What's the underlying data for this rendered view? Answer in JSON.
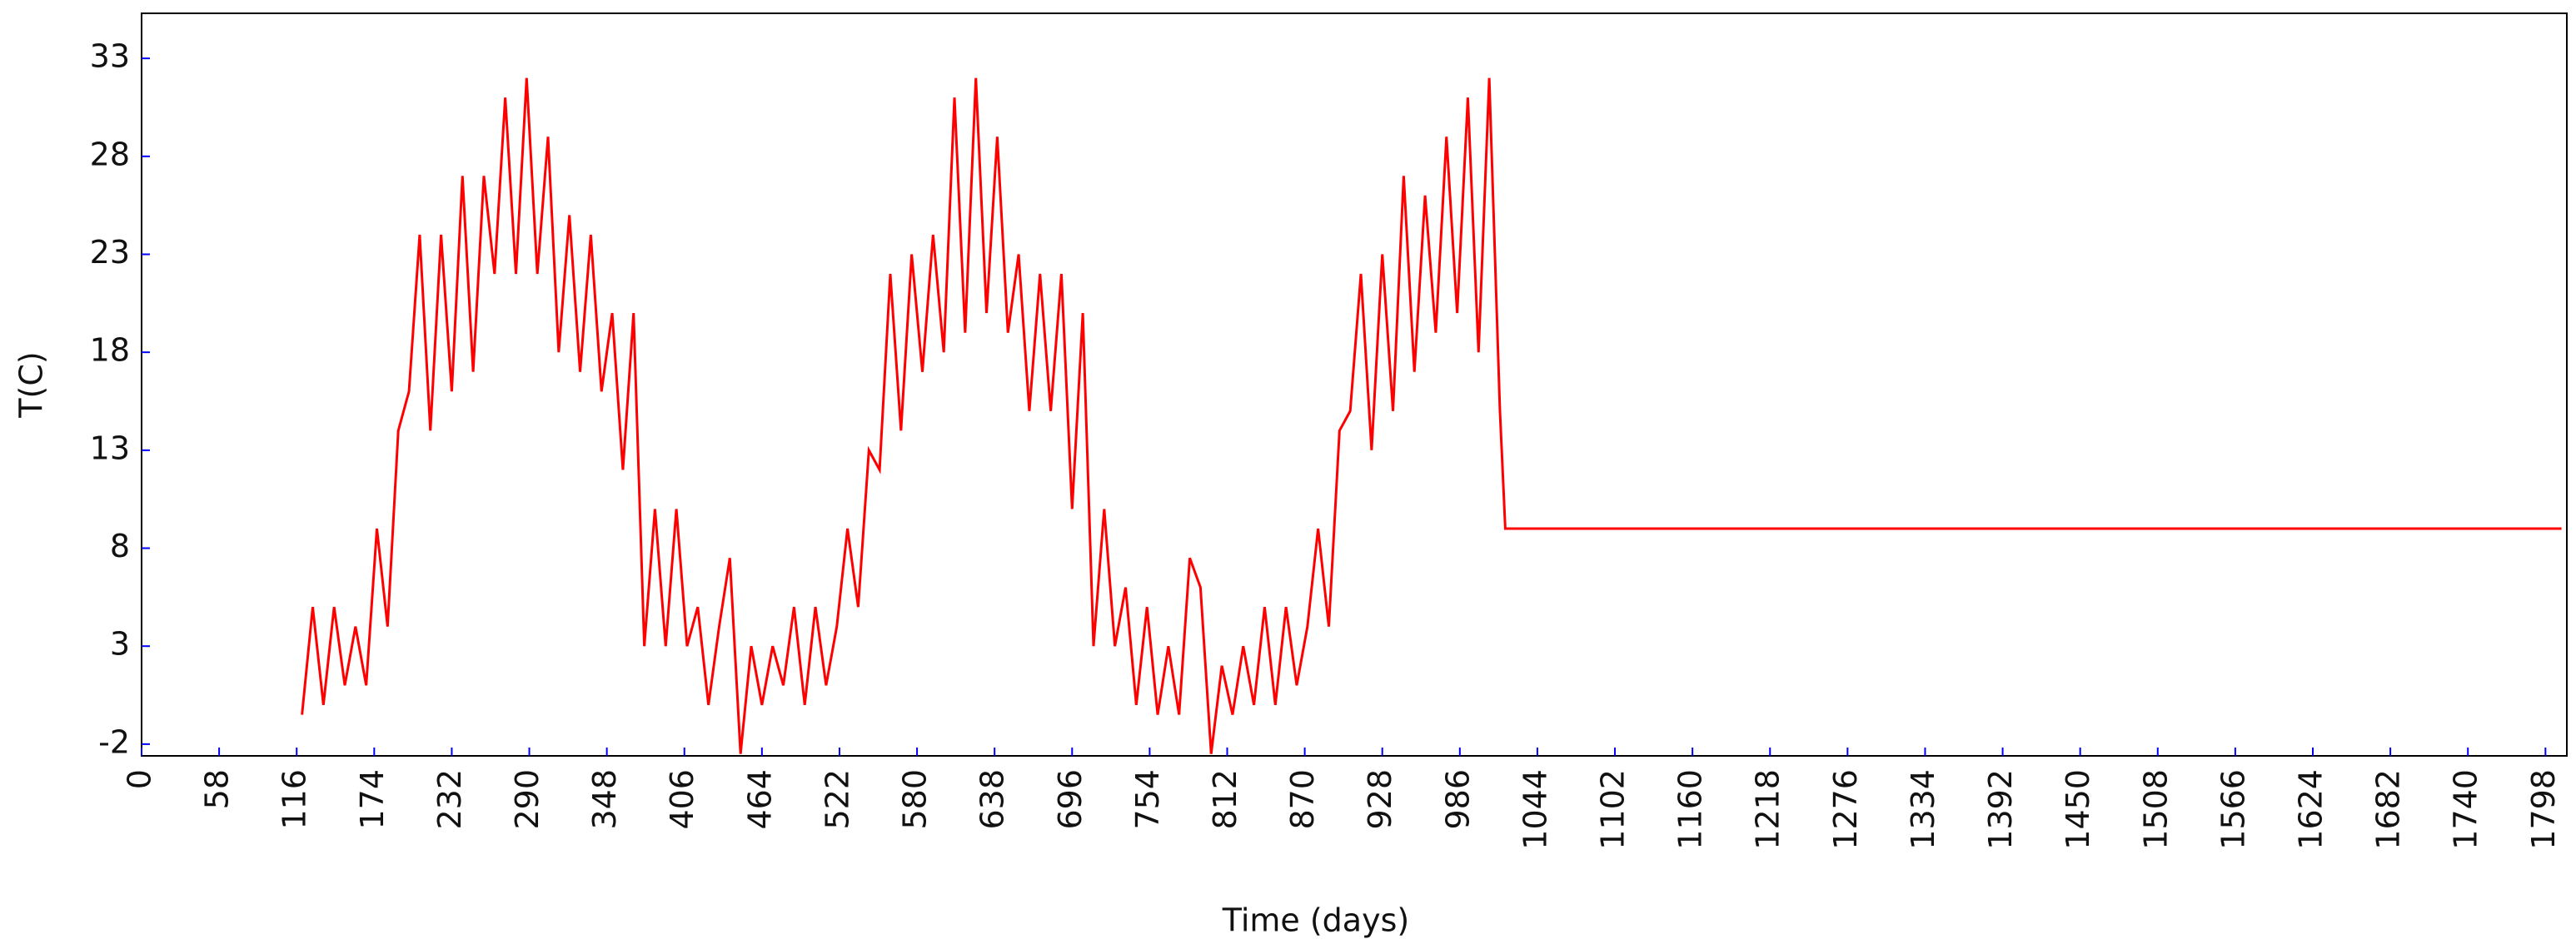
{
  "chart_data": {
    "type": "line",
    "x_label": "Time (days)",
    "y_label": "T(C)",
    "x": [
      120,
      128,
      136,
      144,
      152,
      160,
      168,
      176,
      184,
      192,
      200,
      208,
      216,
      224,
      232,
      240,
      248,
      256,
      264,
      272,
      280,
      288,
      296,
      304,
      312,
      320,
      328,
      336,
      344,
      352,
      360,
      368,
      376,
      384,
      392,
      400,
      408,
      416,
      424,
      432,
      440,
      448,
      456,
      464,
      472,
      480,
      488,
      496,
      504,
      512,
      520,
      528,
      536,
      544,
      552,
      560,
      568,
      576,
      584,
      592,
      600,
      608,
      616,
      624,
      632,
      640,
      648,
      656,
      664,
      672,
      680,
      688,
      696,
      704,
      712,
      720,
      728,
      736,
      744,
      752,
      760,
      768,
      776,
      784,
      792,
      800,
      808,
      816,
      824,
      832,
      840,
      848,
      856,
      864,
      872,
      880,
      888,
      896,
      904,
      912,
      920,
      928,
      936,
      944,
      952,
      960,
      968,
      976,
      984,
      992,
      1000,
      1008,
      1016,
      1020,
      1810
    ],
    "series": [
      {
        "color": "#ff0000",
        "values": [
          -0.5,
          5,
          0,
          5,
          1,
          4,
          1,
          9,
          4,
          14,
          16,
          24,
          14,
          24,
          16,
          27,
          17,
          27,
          22,
          31,
          22,
          32,
          22,
          29,
          18,
          25,
          17,
          24,
          16,
          20,
          12,
          20,
          3,
          10,
          3,
          10,
          3,
          5,
          0,
          4,
          7.5,
          -2.5,
          3,
          0,
          3,
          1,
          5,
          0,
          5,
          1,
          4,
          9,
          5,
          13,
          12,
          22,
          14,
          23,
          17,
          24,
          18,
          31,
          19,
          32,
          20,
          29,
          19,
          23,
          15,
          22,
          15,
          22,
          10,
          20,
          3,
          10,
          3,
          6,
          0,
          5,
          -0.5,
          3,
          -0.5,
          7.5,
          6,
          -2.5,
          2,
          -0.5,
          3,
          0,
          5,
          0,
          5,
          1,
          4,
          9,
          4,
          14,
          15,
          22,
          13,
          23,
          15,
          27,
          17,
          26,
          19,
          29,
          20,
          31,
          18,
          32,
          15,
          9,
          9
        ]
      }
    ],
    "xlim": [
      0,
      1814
    ],
    "xticks": [
      0,
      58,
      116,
      174,
      232,
      290,
      348,
      406,
      464,
      522,
      580,
      638,
      696,
      754,
      812,
      870,
      928,
      986,
      1044,
      1102,
      1160,
      1218,
      1276,
      1334,
      1392,
      1450,
      1508,
      1566,
      1624,
      1682,
      1740,
      1798
    ],
    "ylim": [
      -2.6,
      35.3
    ],
    "yticks": [
      -2,
      3,
      8,
      13,
      18,
      23,
      28,
      33
    ],
    "grid": false
  }
}
